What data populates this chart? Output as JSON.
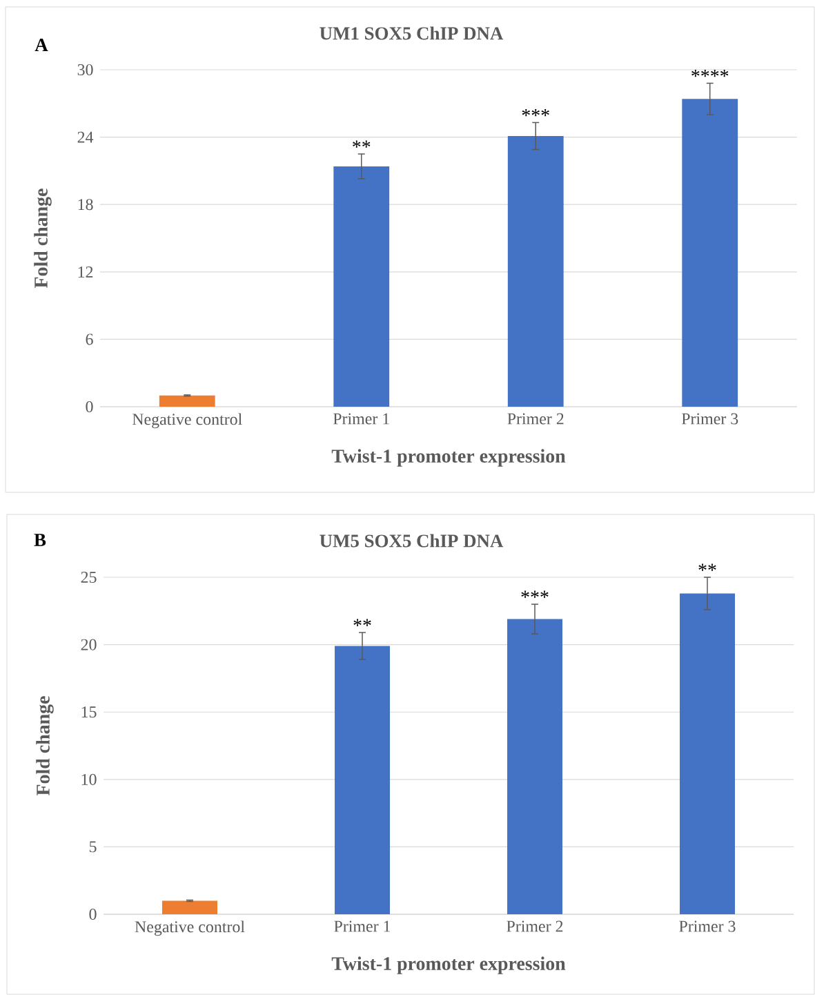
{
  "chart_data": [
    {
      "type": "bar",
      "title": "UM1 SOX5 ChIP DNA",
      "xlabel": "Twist-1 promoter expression",
      "ylabel": "Fold change",
      "categories": [
        "Negative control",
        "Primer 1",
        "Primer 2",
        "Primer 3"
      ],
      "values": [
        1.0,
        21.4,
        24.1,
        27.4
      ],
      "errors": [
        0.05,
        1.1,
        1.2,
        1.4
      ],
      "colors": [
        "#ed7d31",
        "#4472c4",
        "#4472c4",
        "#4472c4"
      ],
      "ylim": [
        0,
        30
      ],
      "yticks": [
        0,
        6,
        12,
        18,
        24,
        30
      ],
      "grid": "y",
      "annotations": [
        "A",
        {
          "text": "**",
          "x": "Primer 1",
          "y": 22.5
        },
        {
          "text": "***",
          "x": "Primer 2",
          "y": 25.3
        },
        {
          "text": "****",
          "x": "Primer 3",
          "y": 28.8
        }
      ]
    },
    {
      "type": "bar",
      "title": "UM5 SOX5 ChIP DNA",
      "xlabel": "Twist-1 promoter expression",
      "ylabel": "Fold change",
      "categories": [
        "Negative control",
        "Primer 1",
        "Primer 2",
        "Primer 3"
      ],
      "values": [
        1.0,
        19.9,
        21.9,
        23.8
      ],
      "errors": [
        0.05,
        1.0,
        1.1,
        1.2
      ],
      "colors": [
        "#ed7d31",
        "#4472c4",
        "#4472c4",
        "#4472c4"
      ],
      "ylim": [
        0,
        25
      ],
      "yticks": [
        0,
        5,
        10,
        15,
        20,
        25
      ],
      "grid": "y",
      "annotations": [
        "B",
        {
          "text": "**",
          "x": "Primer 1",
          "y": 20.9
        },
        {
          "text": "***",
          "x": "Primer 2",
          "y": 23.0
        },
        {
          "text": "**",
          "x": "Primer 3",
          "y": 25.0
        }
      ]
    }
  ]
}
